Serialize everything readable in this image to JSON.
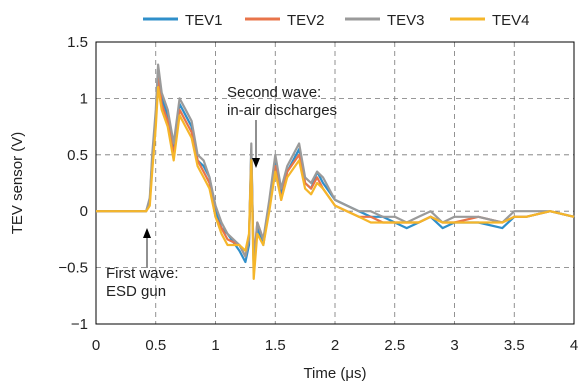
{
  "chart_data": {
    "type": "line",
    "xlabel": "Time (μs)",
    "ylabel": "TEV sensor (V)",
    "xlim": [
      0,
      4
    ],
    "ylim": [
      -1,
      1.5
    ],
    "xticks": [
      "0",
      "0.5",
      "1",
      "1.5",
      "2",
      "2.5",
      "3",
      "3.5",
      "4"
    ],
    "yticks": [
      "−1",
      "−0.5",
      "0",
      "0.5",
      "1",
      "1.5"
    ],
    "grid": true,
    "legend_position": "top",
    "x": [
      0,
      0.2,
      0.42,
      0.45,
      0.47,
      0.5,
      0.52,
      0.55,
      0.6,
      0.65,
      0.7,
      0.75,
      0.8,
      0.85,
      0.9,
      0.95,
      1.0,
      1.05,
      1.1,
      1.2,
      1.25,
      1.28,
      1.3,
      1.32,
      1.35,
      1.4,
      1.45,
      1.5,
      1.55,
      1.6,
      1.7,
      1.75,
      1.8,
      1.85,
      1.9,
      2.0,
      2.1,
      2.2,
      2.3,
      2.4,
      2.5,
      2.6,
      2.7,
      2.8,
      2.9,
      3.0,
      3.2,
      3.4,
      3.5,
      3.6,
      3.8,
      4.0
    ],
    "series": [
      {
        "name": "TEV1",
        "color": "#2f8fca",
        "values": [
          0,
          0,
          0,
          0.1,
          0.45,
          0.8,
          1.25,
          1.0,
          0.85,
          0.55,
          0.95,
          0.85,
          0.75,
          0.45,
          0.4,
          0.3,
          0.0,
          -0.15,
          -0.2,
          -0.35,
          -0.45,
          -0.3,
          0.55,
          -0.5,
          -0.15,
          -0.3,
          0.05,
          0.45,
          0.15,
          0.35,
          0.55,
          0.25,
          0.2,
          0.35,
          0.25,
          0.1,
          0.05,
          0.0,
          -0.05,
          -0.05,
          -0.1,
          -0.15,
          -0.1,
          -0.05,
          -0.15,
          -0.1,
          -0.1,
          -0.15,
          -0.05,
          -0.05,
          0.0,
          -0.05
        ]
      },
      {
        "name": "TEV2",
        "color": "#e8744a",
        "values": [
          0,
          0,
          0,
          0.08,
          0.4,
          0.85,
          1.2,
          0.95,
          0.8,
          0.5,
          0.9,
          0.8,
          0.7,
          0.45,
          0.35,
          0.25,
          -0.05,
          -0.15,
          -0.25,
          -0.3,
          -0.4,
          -0.25,
          0.5,
          -0.45,
          -0.1,
          -0.25,
          0.05,
          0.4,
          0.1,
          0.35,
          0.5,
          0.25,
          0.2,
          0.3,
          0.2,
          0.05,
          0.0,
          -0.05,
          -0.05,
          -0.1,
          -0.1,
          -0.1,
          -0.1,
          -0.05,
          -0.1,
          -0.1,
          -0.05,
          -0.1,
          -0.05,
          -0.05,
          0.0,
          -0.05
        ]
      },
      {
        "name": "TEV3",
        "color": "#9a9a9a",
        "values": [
          0,
          0,
          0,
          0.12,
          0.5,
          0.9,
          1.3,
          1.05,
          0.9,
          0.6,
          1.0,
          0.9,
          0.8,
          0.5,
          0.45,
          0.3,
          0.05,
          -0.1,
          -0.2,
          -0.3,
          -0.4,
          -0.25,
          0.6,
          -0.5,
          -0.1,
          -0.25,
          0.1,
          0.5,
          0.2,
          0.4,
          0.6,
          0.3,
          0.25,
          0.35,
          0.3,
          0.1,
          0.05,
          0.0,
          0.0,
          -0.05,
          -0.05,
          -0.1,
          -0.05,
          0.0,
          -0.1,
          -0.05,
          -0.05,
          -0.1,
          0.0,
          0.0,
          0.0,
          -0.05
        ]
      },
      {
        "name": "TEV4",
        "color": "#f5b62a",
        "values": [
          0,
          0,
          0,
          0.05,
          0.35,
          0.75,
          1.1,
          0.9,
          0.75,
          0.45,
          0.85,
          0.75,
          0.65,
          0.4,
          0.3,
          0.2,
          -0.05,
          -0.2,
          -0.3,
          -0.3,
          -0.35,
          -0.2,
          0.45,
          -0.6,
          -0.2,
          -0.3,
          0.0,
          0.35,
          0.1,
          0.3,
          0.45,
          0.2,
          0.15,
          0.25,
          0.2,
          0.05,
          0.0,
          -0.05,
          -0.1,
          -0.1,
          -0.1,
          -0.1,
          -0.1,
          -0.05,
          -0.1,
          -0.1,
          -0.1,
          -0.1,
          -0.05,
          -0.05,
          0.0,
          -0.05
        ]
      }
    ],
    "annotations": [
      {
        "lines": [
          "Second wave:",
          "in-air discharges"
        ],
        "x": 1.33,
        "y": 0.35
      },
      {
        "lines": [
          "First wave:",
          "ESD gun"
        ],
        "x": 0.43,
        "y": -0.15
      }
    ]
  }
}
